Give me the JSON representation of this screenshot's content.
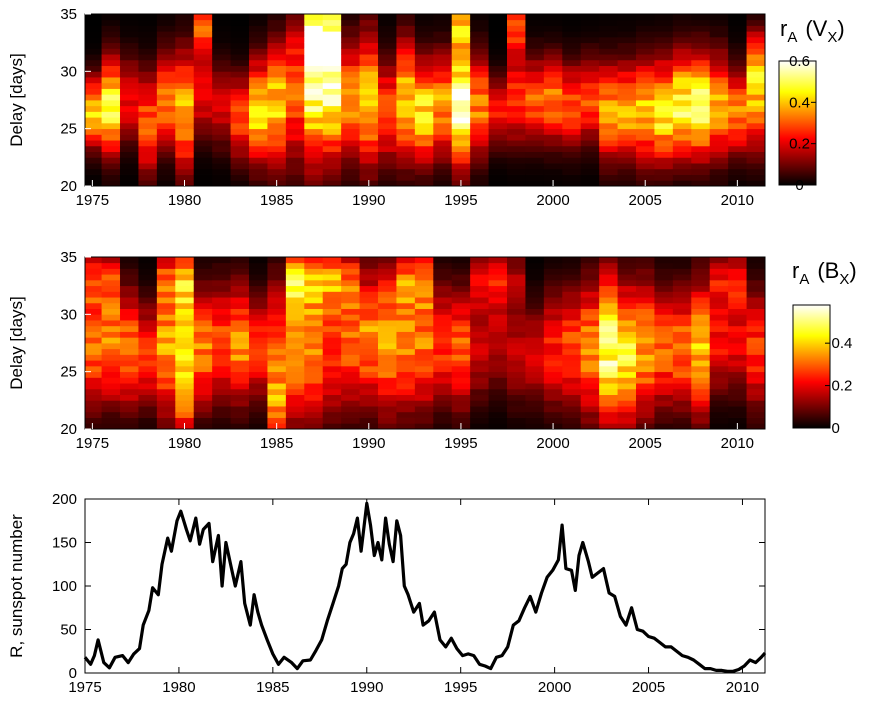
{
  "chart_data": [
    {
      "type": "heatmap",
      "ylabel": "Delay [days]",
      "xlim": [
        1974.6,
        2011.5
      ],
      "ylim": [
        20,
        35
      ],
      "xticks": [
        1975,
        1980,
        1985,
        1990,
        1995,
        2000,
        2005,
        2010
      ],
      "yticks": [
        20,
        25,
        30,
        35
      ],
      "colorbar": {
        "title": "r_A (V_X)",
        "title_main": "r",
        "title_sub": "A",
        "title_paren_open": "(V",
        "title_paren_sub": "X",
        "title_paren_close": ")",
        "range": [
          0,
          0.6
        ],
        "ticks": [
          0,
          0.2,
          0.4,
          0.6
        ],
        "tick_labels": [
          "0",
          "0.2",
          "0.4",
          "0.6"
        ],
        "colormap": "hot"
      },
      "x_bins": [
        1974.6,
        1975.5,
        1976.5,
        1977.5,
        1978.5,
        1979.5,
        1980.5,
        1981.5,
        1982.5,
        1983.5,
        1984.5,
        1985.5,
        1986.5,
        1987.5,
        1988.5,
        1989.5,
        1990.5,
        1991.5,
        1992.5,
        1993.5,
        1994.5,
        1995.5,
        1996.5,
        1997.5,
        1998.5,
        1999.5,
        2000.5,
        2001.5,
        2002.5,
        2003.5,
        2004.5,
        2005.5,
        2006.5,
        2007.5,
        2008.5,
        2009.5,
        2010.5,
        2011.5
      ],
      "column_center_delay": [
        26.5,
        27,
        27.5,
        25.5,
        27.5,
        26.5,
        28,
        27,
        26,
        26.5,
        27,
        28.5,
        29.5,
        29,
        27.5,
        27.5,
        26.5,
        27.5,
        26.5,
        27,
        27,
        27,
        26.5,
        27.5,
        27.5,
        27.5,
        27,
        27.5,
        26.5,
        26.5,
        26.5,
        26.5,
        27,
        27,
        27,
        26.5,
        27.5
      ],
      "column_peak": [
        0.42,
        0.48,
        0.22,
        0.3,
        0.34,
        0.4,
        0.22,
        0.18,
        0.28,
        0.44,
        0.42,
        0.3,
        0.56,
        0.54,
        0.34,
        0.4,
        0.3,
        0.42,
        0.44,
        0.36,
        0.56,
        0.34,
        0.24,
        0.28,
        0.3,
        0.34,
        0.3,
        0.28,
        0.38,
        0.4,
        0.4,
        0.46,
        0.5,
        0.52,
        0.38,
        0.34,
        0.36
      ],
      "column_width": [
        2.0,
        2.8,
        2.5,
        3.0,
        2.8,
        3.5,
        2.5,
        2.5,
        2.5,
        3.0,
        3.5,
        4.5,
        5.0,
        4.5,
        3.5,
        4.0,
        3.0,
        3.5,
        3.0,
        3.0,
        3.5,
        3.0,
        2.0,
        2.5,
        2.5,
        2.5,
        2.5,
        2.5,
        2.8,
        2.8,
        3.0,
        3.0,
        3.0,
        3.0,
        3.0,
        2.5,
        3.0
      ],
      "column_secondary": [
        0.0,
        0.0,
        0.0,
        0.0,
        0.0,
        0.0,
        0.28,
        0.0,
        0.0,
        0.0,
        0.0,
        0.0,
        0.3,
        0.3,
        0.0,
        0.0,
        0.0,
        0.0,
        0.0,
        0.0,
        0.32,
        0.0,
        0.0,
        0.3,
        0.0,
        0.0,
        0.0,
        0.0,
        0.0,
        0.0,
        0.0,
        0.0,
        0.0,
        0.0,
        0.0,
        0.0,
        0.2
      ],
      "column_secondary_delay": [
        34,
        34,
        34,
        34,
        34,
        34,
        34,
        34,
        34,
        34,
        34,
        34,
        33,
        33,
        34,
        34,
        34,
        34,
        34,
        34,
        34,
        34,
        34,
        34,
        34,
        34,
        34,
        34,
        34,
        34,
        34,
        34,
        34,
        34,
        34,
        34,
        31
      ]
    },
    {
      "type": "heatmap",
      "ylabel": "Delay [days]",
      "xlim": [
        1974.6,
        2011.5
      ],
      "ylim": [
        20,
        35
      ],
      "xticks": [
        1975,
        1980,
        1985,
        1990,
        1995,
        2000,
        2005,
        2010
      ],
      "yticks": [
        20,
        25,
        30,
        35
      ],
      "colorbar": {
        "title": "r_A (B_X)",
        "title_main": "r",
        "title_sub": "A",
        "title_paren_open": "(B",
        "title_paren_sub": "X",
        "title_paren_close": ")",
        "range": [
          0,
          0.58
        ],
        "ticks": [
          0,
          0.2,
          0.4
        ],
        "tick_labels": [
          "0",
          "0.2",
          "0.4"
        ],
        "colormap": "hot"
      },
      "x_bins": [
        1974.6,
        1975.5,
        1976.5,
        1977.5,
        1978.5,
        1979.5,
        1980.5,
        1981.5,
        1982.5,
        1983.5,
        1984.5,
        1985.5,
        1986.5,
        1987.5,
        1988.5,
        1989.5,
        1990.5,
        1991.5,
        1992.5,
        1993.5,
        1994.5,
        1995.5,
        1996.5,
        1997.5,
        1998.5,
        1999.5,
        2000.5,
        2001.5,
        2002.5,
        2003.5,
        2004.5,
        2005.5,
        2006.5,
        2007.5,
        2008.5,
        2009.5,
        2010.5,
        2011.5
      ],
      "column_center_delay": [
        27,
        27.5,
        27,
        26.5,
        27,
        26.5,
        27,
        27.5,
        27.5,
        27,
        27,
        27.5,
        27,
        27.5,
        27.5,
        28,
        28,
        27.5,
        27.5,
        27.5,
        27,
        27,
        27.5,
        26.5,
        26.5,
        27,
        27,
        27,
        27,
        26.5,
        27,
        27,
        27,
        27,
        27.5,
        27.5,
        27
      ],
      "column_peak": [
        0.3,
        0.34,
        0.32,
        0.26,
        0.36,
        0.46,
        0.32,
        0.28,
        0.34,
        0.26,
        0.3,
        0.34,
        0.32,
        0.26,
        0.3,
        0.34,
        0.36,
        0.34,
        0.32,
        0.26,
        0.3,
        0.18,
        0.16,
        0.16,
        0.18,
        0.24,
        0.28,
        0.34,
        0.5,
        0.46,
        0.36,
        0.3,
        0.32,
        0.38,
        0.22,
        0.2,
        0.26
      ],
      "column_width": [
        3.5,
        3.5,
        3.5,
        3.0,
        4.0,
        5.0,
        3.5,
        3.5,
        3.5,
        3.0,
        4.0,
        5.0,
        5.0,
        4.5,
        4.0,
        4.0,
        4.5,
        4.0,
        4.0,
        3.5,
        3.5,
        3.0,
        3.0,
        3.0,
        3.0,
        3.5,
        3.5,
        4.0,
        4.5,
        4.0,
        4.0,
        3.5,
        3.5,
        4.0,
        3.0,
        3.0,
        3.5
      ],
      "column_secondary": [
        0.22,
        0.18,
        0.0,
        0.0,
        0.2,
        0.2,
        0.0,
        0.0,
        0.0,
        0.0,
        0.22,
        0.26,
        0.26,
        0.24,
        0.2,
        0.0,
        0.0,
        0.2,
        0.22,
        0.0,
        0.0,
        0.18,
        0.2,
        0.14,
        0.0,
        0.0,
        0.0,
        0.0,
        0.0,
        0.0,
        0.0,
        0.0,
        0.0,
        0.0,
        0.18,
        0.2,
        0.0
      ],
      "column_secondary_delay": [
        33,
        33,
        33,
        33,
        33,
        33,
        33,
        33,
        33,
        33,
        22,
        33,
        33,
        33,
        33,
        33,
        33,
        33,
        33,
        33,
        33,
        33,
        33,
        33,
        33,
        33,
        33,
        33,
        33,
        33,
        33,
        33,
        33,
        33,
        33,
        33,
        33
      ]
    },
    {
      "type": "line",
      "ylabel": "R, sunspot number",
      "xlim": [
        1975,
        2011.2
      ],
      "ylim": [
        0,
        200
      ],
      "xticks": [
        1975,
        1980,
        1985,
        1990,
        1995,
        2000,
        2005,
        2010
      ],
      "yticks": [
        0,
        50,
        100,
        150,
        200
      ],
      "series": [
        {
          "x": [
            1975.0,
            1975.3,
            1975.5,
            1975.7,
            1976.0,
            1976.3,
            1976.6,
            1977.0,
            1977.3,
            1977.6,
            1977.9,
            1978.1,
            1978.4,
            1978.6,
            1978.9,
            1979.1,
            1979.4,
            1979.6,
            1979.9,
            1980.1,
            1980.4,
            1980.6,
            1980.9,
            1981.1,
            1981.3,
            1981.6,
            1981.8,
            1982.1,
            1982.3,
            1982.5,
            1982.8,
            1983.0,
            1983.3,
            1983.5,
            1983.8,
            1984.0,
            1984.2,
            1984.4,
            1984.7,
            1985.0,
            1985.3,
            1985.6,
            1986.0,
            1986.3,
            1986.6,
            1987.0,
            1987.3,
            1987.6,
            1987.9,
            1988.2,
            1988.5,
            1988.7,
            1988.9,
            1989.1,
            1989.3,
            1989.5,
            1989.7,
            1990.0,
            1990.2,
            1990.4,
            1990.6,
            1990.8,
            1991.0,
            1991.2,
            1991.4,
            1991.6,
            1991.8,
            1992.0,
            1992.2,
            1992.5,
            1992.8,
            1993.0,
            1993.3,
            1993.6,
            1993.9,
            1994.2,
            1994.5,
            1994.8,
            1995.1,
            1995.4,
            1995.7,
            1996.0,
            1996.3,
            1996.6,
            1996.9,
            1997.2,
            1997.5,
            1997.8,
            1998.1,
            1998.4,
            1998.7,
            1999.0,
            1999.3,
            1999.6,
            1999.9,
            2000.2,
            2000.4,
            2000.6,
            2000.9,
            2001.1,
            2001.3,
            2001.5,
            2001.8,
            2002.0,
            2002.3,
            2002.6,
            2002.9,
            2003.2,
            2003.5,
            2003.8,
            2004.1,
            2004.4,
            2004.7,
            2005.0,
            2005.3,
            2005.6,
            2005.9,
            2006.2,
            2006.5,
            2006.8,
            2007.1,
            2007.4,
            2007.7,
            2008.0,
            2008.3,
            2008.6,
            2008.9,
            2009.2,
            2009.5,
            2009.8,
            2010.1,
            2010.4,
            2010.7,
            2011.0,
            2011.2
          ],
          "values": [
            18,
            10,
            20,
            38,
            12,
            6,
            18,
            20,
            12,
            22,
            28,
            55,
            72,
            98,
            90,
            125,
            155,
            140,
            175,
            186,
            165,
            152,
            178,
            148,
            165,
            172,
            128,
            158,
            100,
            150,
            120,
            100,
            128,
            80,
            55,
            90,
            70,
            55,
            38,
            22,
            10,
            18,
            12,
            5,
            14,
            15,
            26,
            38,
            60,
            80,
            100,
            120,
            125,
            150,
            160,
            178,
            140,
            195,
            170,
            135,
            150,
            130,
            178,
            148,
            128,
            175,
            158,
            100,
            90,
            70,
            80,
            55,
            60,
            70,
            38,
            30,
            40,
            28,
            20,
            22,
            20,
            10,
            8,
            5,
            18,
            20,
            30,
            55,
            60,
            75,
            88,
            70,
            92,
            110,
            118,
            130,
            170,
            120,
            118,
            95,
            135,
            150,
            128,
            110,
            115,
            120,
            92,
            88,
            65,
            55,
            75,
            50,
            48,
            42,
            40,
            35,
            30,
            30,
            25,
            20,
            18,
            15,
            10,
            5,
            5,
            3,
            3,
            2,
            2,
            4,
            8,
            15,
            12,
            18,
            23
          ]
        }
      ]
    }
  ]
}
